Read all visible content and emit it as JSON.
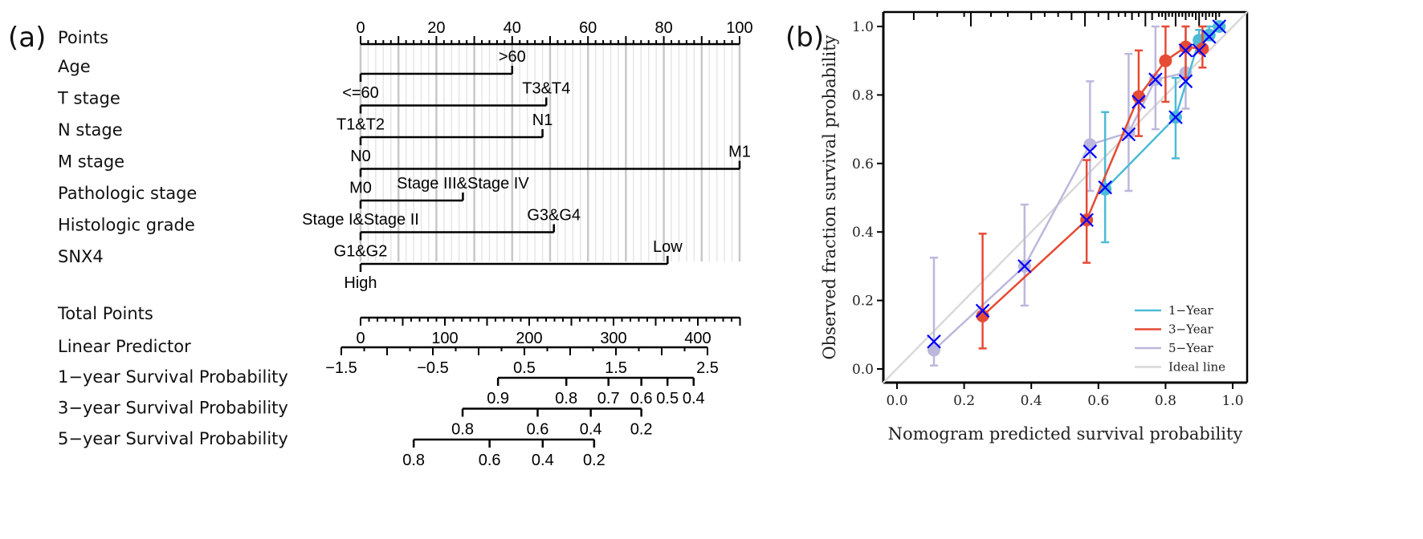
{
  "panel_a_label": "(a)",
  "panel_b_label": "(b)",
  "chart_data": [
    {
      "type": "nomogram",
      "points_axis": {
        "label": "Points",
        "range": [
          0,
          100
        ],
        "major": 10,
        "minor": 2,
        "tick_labels": [
          "0",
          "20",
          "40",
          "60",
          "80",
          "100"
        ]
      },
      "variables": [
        {
          "label": "Age",
          "levels": [
            {
              "name": "<=60",
              "points": 0,
              "pos": "below"
            },
            {
              "name": ">60",
              "points": 40,
              "pos": "above"
            }
          ]
        },
        {
          "label": "T stage",
          "levels": [
            {
              "name": "T1&T2",
              "points": 0,
              "pos": "below"
            },
            {
              "name": "T3&T4",
              "points": 49,
              "pos": "above"
            }
          ]
        },
        {
          "label": "N stage",
          "levels": [
            {
              "name": "N0",
              "points": 0,
              "pos": "below"
            },
            {
              "name": "N1",
              "points": 48,
              "pos": "above"
            }
          ]
        },
        {
          "label": "M stage",
          "levels": [
            {
              "name": "M0",
              "points": 0,
              "pos": "below"
            },
            {
              "name": "M1",
              "points": 100,
              "pos": "above"
            }
          ]
        },
        {
          "label": "Pathologic stage",
          "levels": [
            {
              "name": "Stage I&Stage II",
              "points": 0,
              "pos": "below"
            },
            {
              "name": "Stage III&Stage IV",
              "points": 27,
              "pos": "above"
            }
          ]
        },
        {
          "label": "Histologic grade",
          "levels": [
            {
              "name": "G1&G2",
              "points": 0,
              "pos": "below"
            },
            {
              "name": "G3&G4",
              "points": 51,
              "pos": "above"
            }
          ]
        },
        {
          "label": "SNX4",
          "levels": [
            {
              "name": "High",
              "points": 0,
              "pos": "below"
            },
            {
              "name": "Low",
              "points": 81,
              "pos": "above"
            }
          ]
        }
      ],
      "total_points": {
        "label": "Total Points",
        "range": [
          0,
          450
        ],
        "minor": 10,
        "major": 50,
        "tick_labels": [
          "0",
          "100",
          "200",
          "300",
          "400"
        ],
        "tick_values": [
          0,
          100,
          200,
          300,
          400
        ]
      },
      "linear_predictor": {
        "label": "Linear Predictor",
        "range": [
          -1.5,
          2.5
        ],
        "tick_labels": [
          "−1.5",
          "−0.5",
          "0.5",
          "1.5",
          "2.5"
        ],
        "tick_values": [
          -1.5,
          -0.5,
          0.5,
          1.5,
          2.5
        ]
      },
      "survival_axes": [
        {
          "label": "1−year Survival Probability",
          "ticks": [
            {
              "label": "0.9",
              "total_points": 163
            },
            {
              "label": "0.8",
              "total_points": 244
            },
            {
              "label": "0.7",
              "total_points": 294
            },
            {
              "label": "0.6",
              "total_points": 333
            },
            {
              "label": "0.5",
              "total_points": 364
            },
            {
              "label": "0.4",
              "total_points": 395
            }
          ]
        },
        {
          "label": "3−year Survival Probability",
          "ticks": [
            {
              "label": "0.8",
              "total_points": 121
            },
            {
              "label": "0.6",
              "total_points": 210
            },
            {
              "label": "0.4",
              "total_points": 273
            },
            {
              "label": "0.2",
              "total_points": 333
            }
          ]
        },
        {
          "label": "5−year Survival Probability",
          "ticks": [
            {
              "label": "0.8",
              "total_points": 63
            },
            {
              "label": "0.6",
              "total_points": 153
            },
            {
              "label": "0.4",
              "total_points": 216
            },
            {
              "label": "0.2",
              "total_points": 277
            }
          ]
        }
      ]
    },
    {
      "type": "line",
      "xlabel": "Nomogram predicted survival probability",
      "ylabel": "Observed fraction survival probability",
      "xlim": [
        0,
        1
      ],
      "ylim": [
        0,
        1
      ],
      "xticks": [
        "0.0",
        "0.2",
        "0.4",
        "0.6",
        "0.8",
        "1.0"
      ],
      "yticks": [
        "0.0",
        "0.2",
        "0.4",
        "0.6",
        "0.8",
        "1.0"
      ],
      "legend_position": "bottom-right",
      "series": [
        {
          "name": "1−Year",
          "color": "#4dbbd5",
          "x": [
            0.62,
            0.83,
            0.9,
            0.93,
            0.96
          ],
          "y": [
            0.525,
            0.735,
            0.96,
            0.975,
            1.0
          ],
          "lo": [
            0.37,
            0.615,
            0.93,
            0.96,
            1.0
          ],
          "hi": [
            0.75,
            0.85,
            0.99,
            1.0,
            1.0
          ]
        },
        {
          "name": "3−Year",
          "color": "#e64b35",
          "x": [
            0.255,
            0.565,
            0.72,
            0.8,
            0.86,
            0.91
          ],
          "y": [
            0.155,
            0.435,
            0.795,
            0.9,
            0.94,
            0.935
          ],
          "lo": [
            0.06,
            0.31,
            0.68,
            0.78,
            0.85,
            0.88
          ],
          "hi": [
            0.395,
            0.61,
            0.93,
            1.0,
            1.0,
            1.0
          ]
        },
        {
          "name": "5−Year",
          "color": "#bcb8dc",
          "x": [
            0.11,
            0.38,
            0.575,
            0.69,
            0.77,
            0.86
          ],
          "y": [
            0.055,
            0.3,
            0.655,
            0.69,
            0.845,
            0.865
          ],
          "lo": [
            0.01,
            0.185,
            0.52,
            0.52,
            0.7,
            0.76
          ],
          "hi": [
            0.325,
            0.48,
            0.84,
            0.92,
            1.0,
            1.0
          ]
        },
        {
          "name": "Ideal line",
          "color": "#d9d9d9",
          "x": [
            0,
            1
          ],
          "y": [
            0,
            1
          ]
        }
      ],
      "corrected_markers": {
        "color": "#0000ff",
        "x": [
          0.11,
          0.255,
          0.38,
          0.565,
          0.575,
          0.62,
          0.69,
          0.72,
          0.77,
          0.83,
          0.86,
          0.86,
          0.9,
          0.93,
          0.96
        ],
        "y": [
          0.08,
          0.17,
          0.3,
          0.435,
          0.635,
          0.53,
          0.685,
          0.78,
          0.845,
          0.735,
          0.84,
          0.93,
          0.93,
          0.97,
          1.0
        ]
      },
      "rug_x": [
        0.05,
        0.12,
        0.2,
        0.22,
        0.28,
        0.33,
        0.4,
        0.44,
        0.48,
        0.52,
        0.56,
        0.6,
        0.63,
        0.66,
        0.68,
        0.7,
        0.72,
        0.74,
        0.76,
        0.78,
        0.79,
        0.8,
        0.81,
        0.82,
        0.83,
        0.84,
        0.85,
        0.86,
        0.87,
        0.88,
        0.89,
        0.9,
        0.91,
        0.92,
        0.93,
        0.94,
        0.95,
        0.96
      ]
    }
  ]
}
